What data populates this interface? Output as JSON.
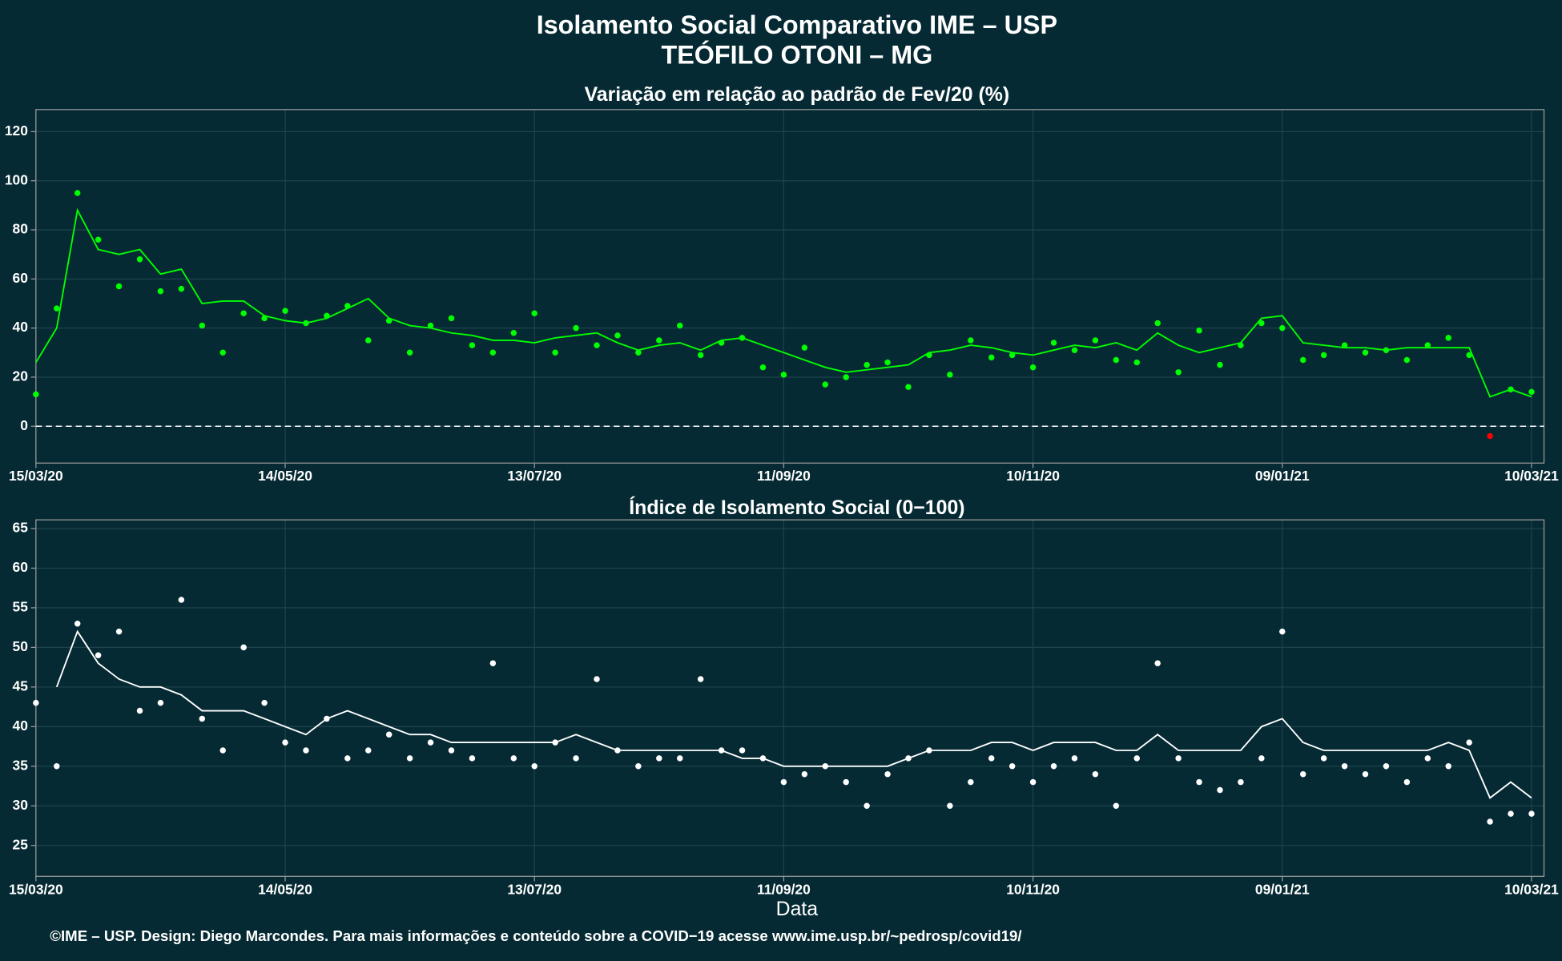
{
  "header": {
    "title": "Isolamento Social Comparativo IME – USP",
    "subtitle": "TEÓFILO OTONI – MG"
  },
  "x_label": "Data",
  "footer": "©IME – USP. Design: Diego Marcondes. Para mais informações e conteúdo sobre a COVID−19 acesse www.ime.usp.br/~pedrosp/covid19/",
  "chart_data": [
    {
      "type": "scatter",
      "title": "Variação em relação ao padrão de Fev/20 (%)",
      "x": [
        "15/03/20",
        "20/03/20",
        "25/03/20",
        "30/03/20",
        "04/04/20",
        "09/04/20",
        "14/04/20",
        "19/04/20",
        "24/04/20",
        "29/04/20",
        "04/05/20",
        "09/05/20",
        "14/05/20",
        "19/05/20",
        "24/05/20",
        "29/05/20",
        "03/06/20",
        "08/06/20",
        "13/06/20",
        "18/06/20",
        "23/06/20",
        "28/06/20",
        "03/07/20",
        "08/07/20",
        "13/07/20",
        "18/07/20",
        "23/07/20",
        "28/07/20",
        "02/08/20",
        "07/08/20",
        "12/08/20",
        "17/08/20",
        "22/08/20",
        "27/08/20",
        "01/09/20",
        "06/09/20",
        "11/09/20",
        "16/09/20",
        "21/09/20",
        "26/09/20",
        "01/10/20",
        "06/10/20",
        "11/10/20",
        "16/10/20",
        "21/10/20",
        "26/10/20",
        "31/10/20",
        "05/11/20",
        "10/11/20",
        "15/11/20",
        "20/11/20",
        "25/11/20",
        "30/11/20",
        "05/12/20",
        "10/12/20",
        "15/12/20",
        "20/12/20",
        "25/12/20",
        "30/12/20",
        "04/01/21",
        "09/01/21",
        "14/01/21",
        "19/01/21",
        "24/01/21",
        "29/01/21",
        "03/02/21",
        "08/02/21",
        "13/02/21",
        "18/02/21",
        "23/02/21",
        "28/02/21",
        "05/03/21",
        "10/03/21"
      ],
      "xlim": [
        "15/03/20",
        "13/03/21"
      ],
      "xticks": [
        "15/03/20",
        "14/05/20",
        "13/07/20",
        "11/09/20",
        "10/11/20",
        "09/01/21",
        "10/03/21"
      ],
      "ylim": [
        -15,
        129
      ],
      "yticks": [
        0,
        20,
        40,
        60,
        80,
        100,
        120
      ],
      "hline": 0,
      "grid": true,
      "series": [
        {
          "style": "points",
          "color": "#00ff00",
          "negative_color": "#ff0000",
          "values": [
            13,
            48,
            95,
            76,
            57,
            68,
            55,
            56,
            41,
            30,
            46,
            44,
            47,
            42,
            45,
            49,
            35,
            43,
            30,
            41,
            44,
            33,
            30,
            38,
            46,
            30,
            40,
            33,
            37,
            30,
            35,
            41,
            29,
            34,
            36,
            24,
            21,
            32,
            17,
            20,
            25,
            26,
            16,
            29,
            21,
            35,
            28,
            29,
            24,
            34,
            31,
            35,
            27,
            26,
            42,
            22,
            39,
            25,
            33,
            42,
            40,
            27,
            29,
            33,
            30,
            31,
            27,
            33,
            36,
            29,
            -4,
            15,
            14
          ]
        },
        {
          "style": "line",
          "color": "#00ff00",
          "values": [
            26,
            40,
            88,
            72,
            70,
            72,
            62,
            64,
            50,
            51,
            51,
            45,
            43,
            42,
            44,
            48,
            52,
            44,
            41,
            40,
            38,
            37,
            35,
            35,
            34,
            36,
            37,
            38,
            34,
            31,
            33,
            34,
            31,
            35,
            36,
            33,
            30,
            27,
            24,
            22,
            23,
            24,
            25,
            30,
            31,
            33,
            32,
            30,
            29,
            31,
            33,
            32,
            34,
            31,
            38,
            33,
            30,
            32,
            34,
            44,
            45,
            34,
            33,
            32,
            32,
            31,
            32,
            32,
            32,
            32,
            12,
            15,
            12
          ]
        }
      ]
    },
    {
      "type": "scatter",
      "title": "Índice de Isolamento Social (0−100)",
      "x": [
        "15/03/20",
        "20/03/20",
        "25/03/20",
        "30/03/20",
        "04/04/20",
        "09/04/20",
        "14/04/20",
        "19/04/20",
        "24/04/20",
        "29/04/20",
        "04/05/20",
        "09/05/20",
        "14/05/20",
        "19/05/20",
        "24/05/20",
        "29/05/20",
        "03/06/20",
        "08/06/20",
        "13/06/20",
        "18/06/20",
        "23/06/20",
        "28/06/20",
        "03/07/20",
        "08/07/20",
        "13/07/20",
        "18/07/20",
        "23/07/20",
        "28/07/20",
        "02/08/20",
        "07/08/20",
        "12/08/20",
        "17/08/20",
        "22/08/20",
        "27/08/20",
        "01/09/20",
        "06/09/20",
        "11/09/20",
        "16/09/20",
        "21/09/20",
        "26/09/20",
        "01/10/20",
        "06/10/20",
        "11/10/20",
        "16/10/20",
        "21/10/20",
        "26/10/20",
        "31/10/20",
        "05/11/20",
        "10/11/20",
        "15/11/20",
        "20/11/20",
        "25/11/20",
        "30/11/20",
        "05/12/20",
        "10/12/20",
        "15/12/20",
        "20/12/20",
        "25/12/20",
        "30/12/20",
        "04/01/21",
        "09/01/21",
        "14/01/21",
        "19/01/21",
        "24/01/21",
        "29/01/21",
        "03/02/21",
        "08/02/21",
        "13/02/21",
        "18/02/21",
        "23/02/21",
        "28/02/21",
        "05/03/21",
        "10/03/21"
      ],
      "xlim": [
        "15/03/20",
        "13/03/21"
      ],
      "xticks": [
        "15/03/20",
        "14/05/20",
        "13/07/20",
        "11/09/20",
        "10/11/20",
        "09/01/21",
        "10/03/21"
      ],
      "ylim": [
        21.1,
        66.1
      ],
      "yticks": [
        25,
        30,
        35,
        40,
        45,
        50,
        55,
        60,
        65
      ],
      "grid": true,
      "series": [
        {
          "style": "points",
          "color": "#ffffff",
          "values": [
            43,
            35,
            53,
            49,
            52,
            42,
            43,
            56,
            41,
            37,
            50,
            43,
            38,
            37,
            41,
            36,
            37,
            39,
            36,
            38,
            37,
            36,
            48,
            36,
            35,
            38,
            36,
            46,
            37,
            35,
            36,
            36,
            46,
            37,
            37,
            36,
            33,
            34,
            35,
            33,
            30,
            34,
            36,
            37,
            30,
            33,
            36,
            35,
            33,
            35,
            36,
            34,
            30,
            36,
            48,
            36,
            33,
            32,
            33,
            36,
            52,
            34,
            36,
            35,
            34,
            35,
            33,
            36,
            35,
            38,
            28,
            29,
            29
          ]
        },
        {
          "style": "line",
          "color": "#ffffff",
          "values": [
            null,
            45,
            52,
            48,
            46,
            45,
            45,
            44,
            42,
            42,
            42,
            41,
            40,
            39,
            41,
            42,
            41,
            40,
            39,
            39,
            38,
            38,
            38,
            38,
            38,
            38,
            39,
            38,
            37,
            37,
            37,
            37,
            37,
            37,
            36,
            36,
            35,
            35,
            35,
            35,
            35,
            35,
            36,
            37,
            37,
            37,
            38,
            38,
            37,
            38,
            38,
            38,
            37,
            37,
            39,
            37,
            37,
            37,
            37,
            40,
            41,
            38,
            37,
            37,
            37,
            37,
            37,
            37,
            38,
            37,
            31,
            33,
            31
          ]
        }
      ]
    }
  ]
}
